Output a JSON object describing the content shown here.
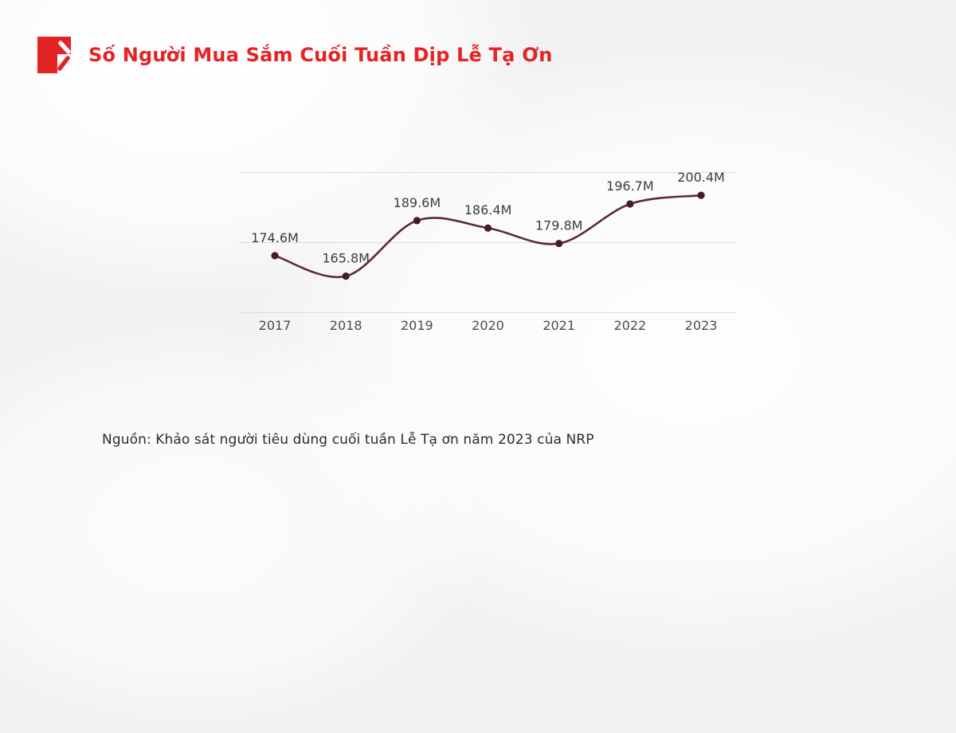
{
  "header": {
    "title": "Số Người Mua Sắm Cuối Tuần Dịp Lễ Tạ Ơn"
  },
  "chart_data": {
    "type": "line",
    "title": "Số Người Mua Sắm Cuối Tuần Dịp Lễ Tạ Ơn",
    "categories": [
      "2017",
      "2018",
      "2019",
      "2020",
      "2021",
      "2022",
      "2023"
    ],
    "values": [
      174.6,
      165.8,
      189.6,
      186.4,
      179.8,
      196.7,
      200.4
    ],
    "point_labels": [
      "174.6M",
      "165.8M",
      "189.6M",
      "186.4M",
      "179.8M",
      "196.7M",
      "200.4M"
    ],
    "unit": "M (millions of shoppers)",
    "ylim": [
      150,
      210
    ],
    "gridline_values": [
      150,
      180,
      210
    ],
    "grid": true,
    "legend": false,
    "line_color": "#5d2a3b",
    "dot_color": "#451c2d",
    "label_color": "#3b3b43",
    "axis_label_color": "#4a4a52"
  },
  "footer": {
    "source": "Nguồn: Khảo sát người tiêu dùng cuối tuần Lễ Tạ ơn năm 2023 của NRP"
  },
  "colors": {
    "accent_red": "#e42325",
    "gridline": "#dedede",
    "background": "#f2f2f3"
  }
}
